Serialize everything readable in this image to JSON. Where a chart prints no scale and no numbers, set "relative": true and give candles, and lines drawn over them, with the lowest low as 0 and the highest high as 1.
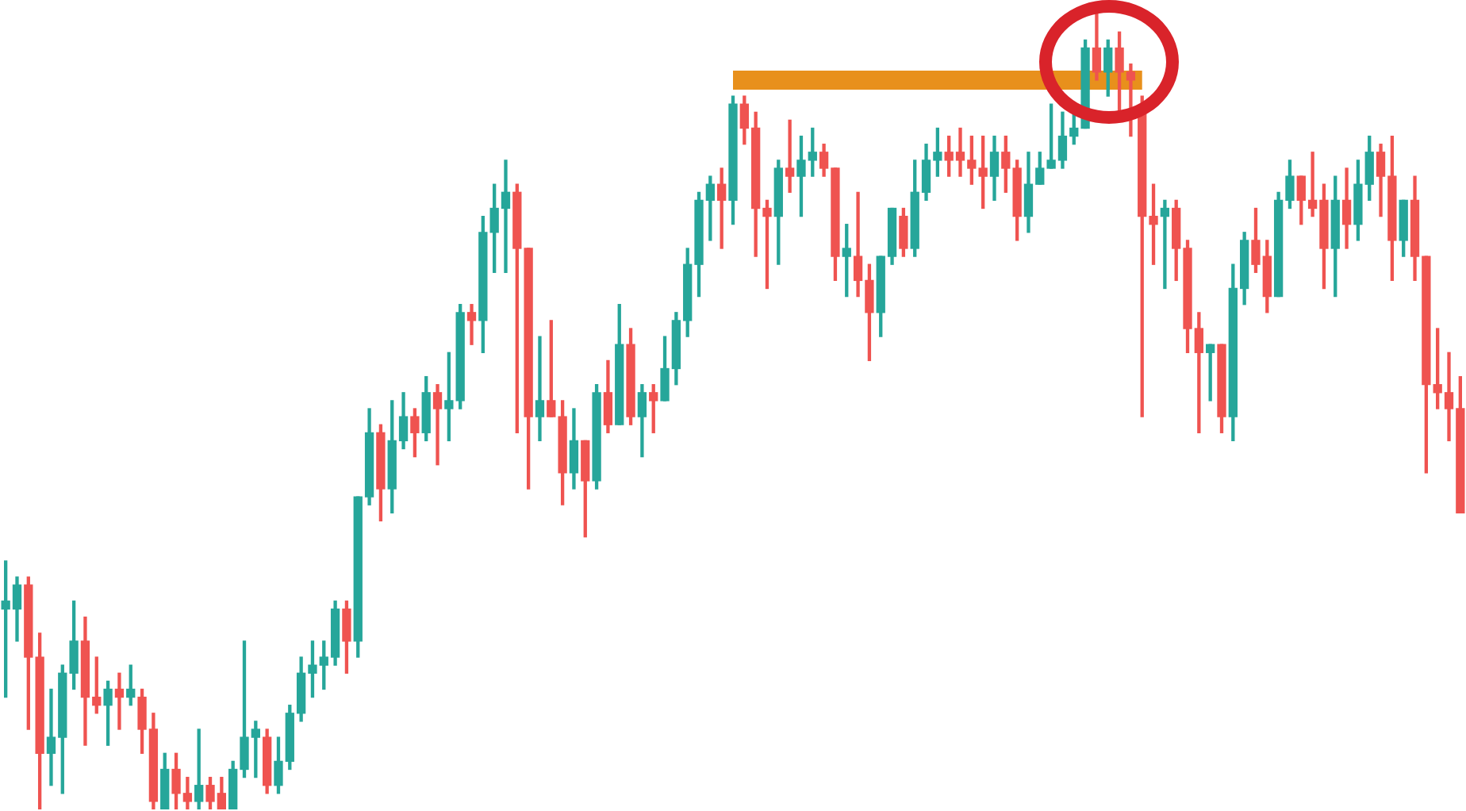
{
  "chart_data": {
    "type": "candlestick",
    "relative": true,
    "legend": false,
    "tick_labels": false,
    "categories": [
      null,
      null,
      null,
      null,
      null,
      null,
      null,
      null,
      null,
      null,
      null,
      null,
      null,
      null,
      null,
      null,
      null,
      null,
      null,
      null,
      null,
      null,
      null,
      null,
      null,
      null,
      null,
      null,
      null,
      null,
      null,
      null,
      null,
      null,
      null,
      null,
      null,
      null,
      null,
      null,
      null,
      null,
      null,
      null,
      null,
      null,
      null,
      null,
      null,
      null,
      null,
      null,
      null,
      null,
      null,
      null,
      null,
      null,
      null,
      null,
      null,
      null,
      null,
      null,
      null,
      null,
      null,
      null,
      null,
      null,
      null,
      null,
      null,
      null,
      null,
      null,
      null,
      null,
      null,
      null,
      null,
      null,
      null,
      null,
      null,
      null,
      null,
      null,
      null,
      null,
      null,
      null,
      null,
      null,
      null,
      null,
      null,
      null,
      null,
      null,
      null,
      null,
      null,
      null,
      null,
      null,
      null,
      null,
      null,
      null,
      null,
      null,
      null,
      null,
      null,
      null,
      null,
      null,
      null,
      null,
      null,
      null,
      null,
      null,
      null,
      null,
      null,
      null,
      null
    ],
    "ohlc": [
      [
        0.25,
        0.31,
        0.14,
        0.26
      ],
      [
        0.25,
        0.29,
        0.21,
        0.28
      ],
      [
        0.28,
        0.29,
        0.1,
        0.19
      ],
      [
        0.19,
        0.22,
        0,
        0.07
      ],
      [
        0.07,
        0.15,
        0.03,
        0.09
      ],
      [
        0.09,
        0.18,
        0.02,
        0.17
      ],
      [
        0.17,
        0.26,
        0.15,
        0.21
      ],
      [
        0.21,
        0.24,
        0.08,
        0.14
      ],
      [
        0.14,
        0.19,
        0.12,
        0.13
      ],
      [
        0.13,
        0.16,
        0.08,
        0.15
      ],
      [
        0.15,
        0.17,
        0.1,
        0.14
      ],
      [
        0.14,
        0.18,
        0.13,
        0.15
      ],
      [
        0.14,
        0.15,
        0.07,
        0.1
      ],
      [
        0.1,
        0.12,
        0,
        0.01
      ],
      [
        0,
        0.07,
        0,
        0.05
      ],
      [
        0.05,
        0.07,
        0,
        0.02
      ],
      [
        0.02,
        0.04,
        0,
        0.01
      ],
      [
        0.01,
        0.1,
        0,
        0.03
      ],
      [
        0.03,
        0.04,
        0,
        0.01
      ],
      [
        0.02,
        0.04,
        0,
        0
      ],
      [
        0,
        0.06,
        0,
        0.05
      ],
      [
        0.05,
        0.21,
        0.04,
        0.09
      ],
      [
        0.09,
        0.11,
        0.04,
        0.1
      ],
      [
        0.09,
        0.1,
        0.02,
        0.03
      ],
      [
        0.03,
        0.09,
        0.02,
        0.06
      ],
      [
        0.06,
        0.13,
        0.05,
        0.12
      ],
      [
        0.12,
        0.19,
        0.11,
        0.17
      ],
      [
        0.17,
        0.21,
        0.14,
        0.18
      ],
      [
        0.18,
        0.21,
        0.15,
        0.19
      ],
      [
        0.19,
        0.26,
        0.18,
        0.25
      ],
      [
        0.25,
        0.26,
        0.17,
        0.21
      ],
      [
        0.21,
        0.39,
        0.19,
        0.39
      ],
      [
        0.39,
        0.5,
        0.38,
        0.47
      ],
      [
        0.47,
        0.48,
        0.36,
        0.4
      ],
      [
        0.4,
        0.51,
        0.37,
        0.46
      ],
      [
        0.46,
        0.52,
        0.45,
        0.49
      ],
      [
        0.49,
        0.5,
        0.44,
        0.47
      ],
      [
        0.47,
        0.54,
        0.46,
        0.52
      ],
      [
        0.52,
        0.53,
        0.43,
        0.5
      ],
      [
        0.5,
        0.57,
        0.46,
        0.51
      ],
      [
        0.51,
        0.63,
        0.5,
        0.62
      ],
      [
        0.62,
        0.63,
        0.58,
        0.61
      ],
      [
        0.61,
        0.74,
        0.57,
        0.72
      ],
      [
        0.72,
        0.78,
        0.67,
        0.75
      ],
      [
        0.75,
        0.81,
        0.67,
        0.77
      ],
      [
        0.77,
        0.78,
        0.47,
        0.7
      ],
      [
        0.7,
        0.7,
        0.4,
        0.49
      ],
      [
        0.49,
        0.59,
        0.46,
        0.51
      ],
      [
        0.51,
        0.61,
        0.49,
        0.49
      ],
      [
        0.49,
        0.51,
        0.38,
        0.42
      ],
      [
        0.42,
        0.5,
        0.4,
        0.46
      ],
      [
        0.46,
        0.46,
        0.34,
        0.41
      ],
      [
        0.41,
        0.53,
        0.4,
        0.52
      ],
      [
        0.52,
        0.56,
        0.47,
        0.48
      ],
      [
        0.48,
        0.63,
        0.48,
        0.58
      ],
      [
        0.58,
        0.6,
        0.48,
        0.49
      ],
      [
        0.49,
        0.53,
        0.44,
        0.52
      ],
      [
        0.52,
        0.53,
        0.47,
        0.51
      ],
      [
        0.51,
        0.59,
        0.51,
        0.55
      ],
      [
        0.55,
        0.62,
        0.53,
        0.61
      ],
      [
        0.61,
        0.7,
        0.59,
        0.68
      ],
      [
        0.68,
        0.77,
        0.64,
        0.76
      ],
      [
        0.76,
        0.79,
        0.71,
        0.78
      ],
      [
        0.78,
        0.8,
        0.7,
        0.76
      ],
      [
        0.76,
        0.89,
        0.73,
        0.88
      ],
      [
        0.88,
        0.89,
        0.83,
        0.85
      ],
      [
        0.85,
        0.87,
        0.69,
        0.75
      ],
      [
        0.75,
        0.76,
        0.65,
        0.74
      ],
      [
        0.74,
        0.81,
        0.68,
        0.8
      ],
      [
        0.8,
        0.86,
        0.77,
        0.79
      ],
      [
        0.79,
        0.84,
        0.74,
        0.81
      ],
      [
        0.81,
        0.85,
        0.79,
        0.82
      ],
      [
        0.82,
        0.83,
        0.79,
        0.8
      ],
      [
        0.8,
        0.8,
        0.66,
        0.69
      ],
      [
        0.69,
        0.73,
        0.64,
        0.7
      ],
      [
        0.69,
        0.77,
        0.64,
        0.66
      ],
      [
        0.66,
        0.68,
        0.56,
        0.62
      ],
      [
        0.62,
        0.69,
        0.59,
        0.69
      ],
      [
        0.69,
        0.75,
        0.68,
        0.75
      ],
      [
        0.74,
        0.75,
        0.69,
        0.7
      ],
      [
        0.7,
        0.81,
        0.69,
        0.77
      ],
      [
        0.77,
        0.83,
        0.76,
        0.81
      ],
      [
        0.81,
        0.85,
        0.79,
        0.82
      ],
      [
        0.82,
        0.84,
        0.79,
        0.81
      ],
      [
        0.82,
        0.85,
        0.79,
        0.81
      ],
      [
        0.81,
        0.84,
        0.78,
        0.8
      ],
      [
        0.8,
        0.84,
        0.75,
        0.79
      ],
      [
        0.79,
        0.84,
        0.76,
        0.82
      ],
      [
        0.82,
        0.84,
        0.77,
        0.8
      ],
      [
        0.8,
        0.81,
        0.71,
        0.74
      ],
      [
        0.74,
        0.82,
        0.72,
        0.78
      ],
      [
        0.78,
        0.82,
        0.78,
        0.8
      ],
      [
        0.8,
        0.88,
        0.8,
        0.81
      ],
      [
        0.81,
        0.87,
        0.8,
        0.84
      ],
      [
        0.84,
        0.87,
        0.83,
        0.85
      ],
      [
        0.85,
        0.96,
        0.85,
        0.95
      ],
      [
        0.95,
        1,
        0.91,
        0.92
      ],
      [
        0.92,
        0.96,
        0.89,
        0.95
      ],
      [
        0.95,
        0.97,
        0.86,
        0.92
      ],
      [
        0.92,
        0.93,
        0.84,
        0.91
      ],
      [
        0.87,
        0.89,
        0.49,
        0.74
      ],
      [
        0.74,
        0.78,
        0.68,
        0.73
      ],
      [
        0.74,
        0.76,
        0.65,
        0.75
      ],
      [
        0.75,
        0.76,
        0.66,
        0.7
      ],
      [
        0.7,
        0.71,
        0.57,
        0.6
      ],
      [
        0.6,
        0.62,
        0.47,
        0.57
      ],
      [
        0.57,
        0.58,
        0.51,
        0.58
      ],
      [
        0.58,
        0.58,
        0.47,
        0.49
      ],
      [
        0.49,
        0.68,
        0.46,
        0.65
      ],
      [
        0.65,
        0.72,
        0.63,
        0.71
      ],
      [
        0.71,
        0.75,
        0.67,
        0.68
      ],
      [
        0.69,
        0.71,
        0.62,
        0.64
      ],
      [
        0.64,
        0.77,
        0.64,
        0.76
      ],
      [
        0.76,
        0.81,
        0.75,
        0.79
      ],
      [
        0.79,
        0.79,
        0.73,
        0.76
      ],
      [
        0.76,
        0.82,
        0.74,
        0.75
      ],
      [
        0.76,
        0.78,
        0.65,
        0.7
      ],
      [
        0.7,
        0.79,
        0.64,
        0.76
      ],
      [
        0.76,
        0.8,
        0.7,
        0.73
      ],
      [
        0.73,
        0.81,
        0.71,
        0.78
      ],
      [
        0.78,
        0.84,
        0.76,
        0.82
      ],
      [
        0.82,
        0.83,
        0.74,
        0.79
      ],
      [
        0.79,
        0.84,
        0.66,
        0.71
      ],
      [
        0.71,
        0.76,
        0.69,
        0.76
      ],
      [
        0.76,
        0.79,
        0.66,
        0.69
      ],
      [
        0.69,
        0.69,
        0.42,
        0.53
      ],
      [
        0.53,
        0.6,
        0.5,
        0.52
      ],
      [
        0.52,
        0.57,
        0.46,
        0.5
      ],
      [
        0.5,
        0.54,
        0.37,
        0.37
      ]
    ],
    "colors": [
      "#26a69a",
      "#26a69a",
      "#ef5350",
      "#ef5350",
      "#26a69a",
      "#26a69a",
      "#26a69a",
      "#ef5350",
      "#ef5350",
      "#26a69a",
      "#ef5350",
      "#26a69a",
      "#ef5350",
      "#ef5350",
      "#26a69a",
      "#ef5350",
      "#ef5350",
      "#26a69a",
      "#ef5350",
      "#ef5350",
      "#26a69a",
      "#26a69a",
      "#26a69a",
      "#ef5350",
      "#26a69a",
      "#26a69a",
      "#26a69a",
      "#26a69a",
      "#26a69a",
      "#26a69a",
      "#ef5350",
      "#26a69a",
      "#26a69a",
      "#ef5350",
      "#26a69a",
      "#26a69a",
      "#ef5350",
      "#26a69a",
      "#ef5350",
      "#26a69a",
      "#26a69a",
      "#ef5350",
      "#26a69a",
      "#26a69a",
      "#26a69a",
      "#ef5350",
      "#ef5350",
      "#26a69a",
      "#ef5350",
      "#ef5350",
      "#26a69a",
      "#ef5350",
      "#26a69a",
      "#ef5350",
      "#26a69a",
      "#ef5350",
      "#26a69a",
      "#ef5350",
      "#26a69a",
      "#26a69a",
      "#26a69a",
      "#26a69a",
      "#26a69a",
      "#ef5350",
      "#26a69a",
      "#ef5350",
      "#ef5350",
      "#ef5350",
      "#26a69a",
      "#ef5350",
      "#26a69a",
      "#26a69a",
      "#ef5350",
      "#ef5350",
      "#26a69a",
      "#ef5350",
      "#ef5350",
      "#26a69a",
      "#26a69a",
      "#ef5350",
      "#26a69a",
      "#26a69a",
      "#26a69a",
      "#ef5350",
      "#ef5350",
      "#ef5350",
      "#ef5350",
      "#26a69a",
      "#ef5350",
      "#ef5350",
      "#26a69a",
      "#26a69a",
      "#26a69a",
      "#26a69a",
      "#26a69a",
      "#26a69a",
      "#ef5350",
      "#26a69a",
      "#ef5350",
      "#ef5350",
      "#ef5350",
      "#ef5350",
      "#26a69a",
      "#ef5350",
      "#ef5350",
      "#ef5350",
      "#26a69a",
      "#ef5350",
      "#26a69a",
      "#26a69a",
      "#ef5350",
      "#ef5350",
      "#26a69a",
      "#26a69a",
      "#ef5350",
      "#ef5350",
      "#ef5350",
      "#26a69a",
      "#ef5350",
      "#26a69a",
      "#26a69a",
      "#ef5350",
      "#ef5350",
      "#26a69a",
      "#ef5350",
      "#ef5350",
      "#ef5350",
      "#ef5350",
      "#ef5350"
    ],
    "series": [
      {
        "type": "line",
        "color": "#e8901c",
        "values": [
          null,
          null,
          null,
          null,
          null,
          null,
          null,
          null,
          null,
          null,
          null,
          null,
          null,
          null,
          null,
          null,
          null,
          null,
          null,
          null,
          null,
          null,
          null,
          null,
          null,
          null,
          null,
          null,
          null,
          null,
          null,
          null,
          null,
          null,
          null,
          null,
          null,
          null,
          null,
          null,
          null,
          null,
          null,
          null,
          null,
          null,
          null,
          null,
          null,
          null,
          null,
          null,
          null,
          null,
          null,
          null,
          null,
          null,
          null,
          null,
          null,
          null,
          null,
          null,
          0.91,
          null,
          null,
          null,
          null,
          null,
          null,
          null,
          null,
          null,
          null,
          null,
          null,
          null,
          null,
          null,
          null,
          null,
          null,
          null,
          null,
          null,
          null,
          null,
          null,
          null,
          null,
          null,
          null,
          null,
          null,
          null,
          null,
          null,
          null,
          null,
          0.91,
          null,
          null,
          null,
          null,
          null,
          null,
          null,
          null,
          null,
          null,
          null,
          null,
          null,
          null,
          null,
          null,
          null,
          null,
          null,
          null,
          null,
          null,
          null,
          null,
          null,
          null,
          null,
          null
        ]
      }
    ]
  }
}
